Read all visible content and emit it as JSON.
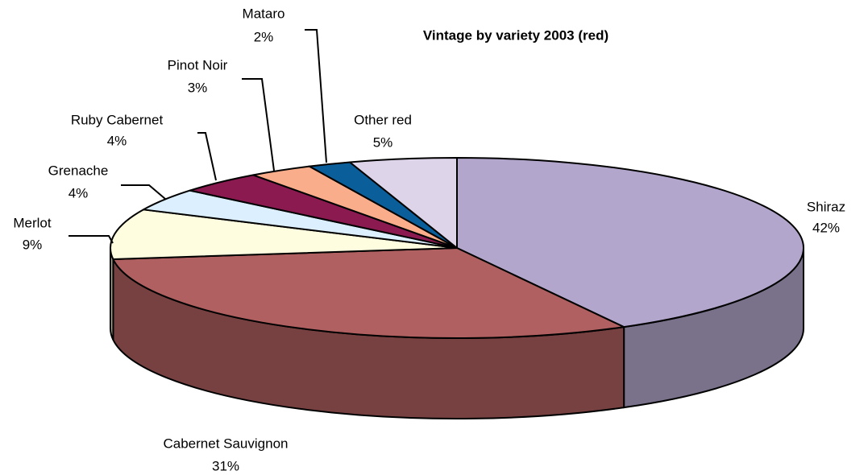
{
  "chart_data": {
    "type": "pie",
    "title": "Vintage by variety 2003 (red)",
    "categories": [
      "Shiraz",
      "Cabernet Sauvignon",
      "Merlot",
      "Grenache",
      "Ruby Cabernet",
      "Pinot Noir",
      "Mataro",
      "Other red"
    ],
    "values": [
      42,
      31,
      9,
      4,
      4,
      3,
      2,
      5
    ],
    "value_labels": [
      "42%",
      "31%",
      "9%",
      "4%",
      "4%",
      "3%",
      "2%",
      "5%"
    ],
    "colors": [
      "#b3a6cc",
      "#b06060",
      "#fffde0",
      "#dcefff",
      "#8b1a50",
      "#f9ad8a",
      "#0a5e99",
      "#ddd4ea"
    ]
  }
}
